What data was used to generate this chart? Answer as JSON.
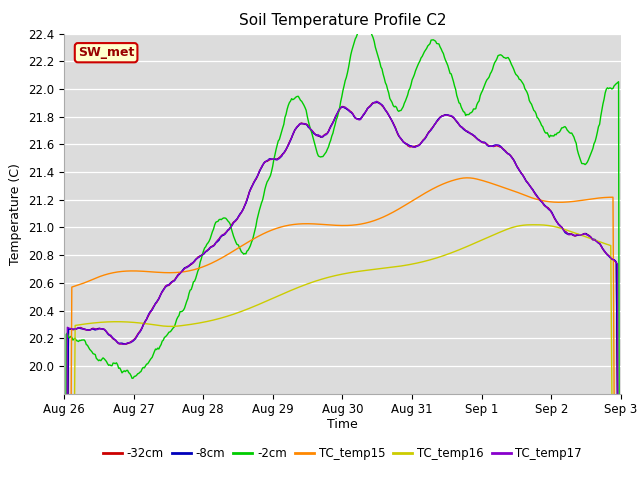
{
  "title": "Soil Temperature Profile C2",
  "xlabel": "Time",
  "ylabel": "Temperature (C)",
  "ylim": [
    19.8,
    22.4
  ],
  "background_color": "#dcdcdc",
  "annotation_text": "SW_met",
  "annotation_bg": "#ffffcc",
  "annotation_border": "#cc0000",
  "series_colors": {
    "-32cm": "#cc0000",
    "-8cm": "#0000bb",
    "-2cm": "#00cc00",
    "TC_temp15": "#ff8800",
    "TC_temp16": "#cccc00",
    "TC_temp17": "#8800cc"
  },
  "x_tick_labels": [
    "Aug 26",
    "Aug 27",
    "Aug 28",
    "Aug 29",
    "Aug 30",
    "Aug 31",
    "Sep 1",
    "Sep 2",
    "Sep 3"
  ]
}
